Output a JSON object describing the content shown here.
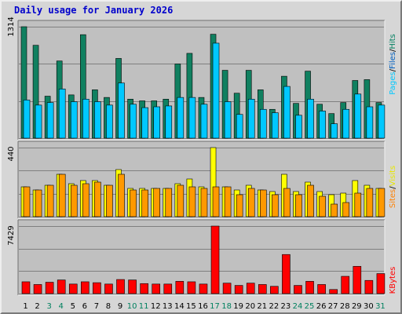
{
  "title": "Daily usage for January 2026",
  "chart_data": [
    {
      "type": "bar",
      "panel": "hits-files-pages",
      "peak_label": "1314",
      "ylim": [
        0,
        1314
      ],
      "grid": true,
      "legend": [
        {
          "text": "Pages",
          "color": "#00c8ff"
        },
        {
          "text": "Files",
          "color": "#0060c0"
        },
        {
          "text": "Hits",
          "color": "#008060"
        }
      ],
      "separator": "/",
      "categories": [
        "1",
        "2",
        "3",
        "4",
        "5",
        "6",
        "7",
        "8",
        "9",
        "10",
        "11",
        "12",
        "13",
        "14",
        "15",
        "16",
        "17",
        "18",
        "19",
        "20",
        "21",
        "22",
        "23",
        "24",
        "25",
        "26",
        "27",
        "28",
        "29",
        "30",
        "31"
      ],
      "series": [
        {
          "name": "Hits",
          "color": "#108060",
          "values": [
            1314,
            1095,
            495,
            910,
            510,
            1220,
            570,
            480,
            940,
            460,
            440,
            440,
            460,
            875,
            1000,
            480,
            1225,
            800,
            530,
            800,
            570,
            340,
            730,
            410,
            790,
            400,
            290,
            420,
            680,
            690,
            420
          ]
        },
        {
          "name": "Pages",
          "color": "#00c8ff",
          "values": [
            450,
            390,
            420,
            580,
            430,
            460,
            430,
            390,
            650,
            400,
            360,
            370,
            380,
            480,
            480,
            400,
            1120,
            430,
            280,
            460,
            340,
            300,
            610,
            270,
            460,
            320,
            170,
            340,
            520,
            370,
            390
          ]
        }
      ]
    },
    {
      "type": "bar",
      "panel": "visits-sites",
      "peak_label": "440",
      "ylim": [
        0,
        440
      ],
      "grid": true,
      "legend": [
        {
          "text": "Sites",
          "color": "#ff8000"
        },
        {
          "text": "Visits",
          "color": "#e8e800"
        }
      ],
      "separator": "/",
      "categories": [
        "1",
        "2",
        "3",
        "4",
        "5",
        "6",
        "7",
        "8",
        "9",
        "10",
        "11",
        "12",
        "13",
        "14",
        "15",
        "16",
        "17",
        "18",
        "19",
        "20",
        "21",
        "22",
        "23",
        "24",
        "25",
        "26",
        "27",
        "28",
        "29",
        "30",
        "31"
      ],
      "series": [
        {
          "name": "Visits",
          "color": "#ffff00",
          "values": [
            190,
            170,
            200,
            270,
            210,
            230,
            230,
            200,
            300,
            180,
            180,
            180,
            180,
            210,
            240,
            190,
            440,
            190,
            170,
            200,
            170,
            160,
            270,
            160,
            220,
            160,
            140,
            150,
            230,
            200,
            180
          ]
        },
        {
          "name": "Sites",
          "color": "#ff9900",
          "values": [
            190,
            170,
            200,
            270,
            200,
            210,
            220,
            200,
            270,
            170,
            170,
            180,
            180,
            200,
            190,
            180,
            190,
            190,
            140,
            180,
            170,
            140,
            180,
            140,
            200,
            130,
            80,
            90,
            150,
            180,
            180
          ]
        }
      ]
    },
    {
      "type": "bar",
      "panel": "kbytes",
      "peak_label": "7429",
      "ylim": [
        0,
        7429
      ],
      "grid": true,
      "legend": [
        {
          "text": "KBytes",
          "color": "#ff0000"
        }
      ],
      "categories": [
        "1",
        "2",
        "3",
        "4",
        "5",
        "6",
        "7",
        "8",
        "9",
        "10",
        "11",
        "12",
        "13",
        "14",
        "15",
        "16",
        "17",
        "18",
        "19",
        "20",
        "21",
        "22",
        "23",
        "24",
        "25",
        "26",
        "27",
        "28",
        "29",
        "30",
        "31"
      ],
      "series": [
        {
          "name": "KBytes",
          "color": "#ff0000",
          "values": [
            1300,
            1000,
            1250,
            1500,
            1050,
            1300,
            1200,
            1050,
            1550,
            1500,
            1100,
            1050,
            1050,
            1350,
            1300,
            1050,
            7429,
            1150,
            900,
            1150,
            1000,
            800,
            4300,
            900,
            1350,
            1000,
            450,
            1900,
            3000,
            1450,
            2200
          ]
        }
      ]
    }
  ],
  "weekend_days": [
    "3",
    "4",
    "10",
    "11",
    "17",
    "18",
    "24",
    "25",
    "31"
  ],
  "colors": {
    "background": "#d6d6d6",
    "plot_area": "#c0c0c0",
    "grid": "#808080",
    "weekday_label": "#000000",
    "weekend_label": "#00805f"
  }
}
